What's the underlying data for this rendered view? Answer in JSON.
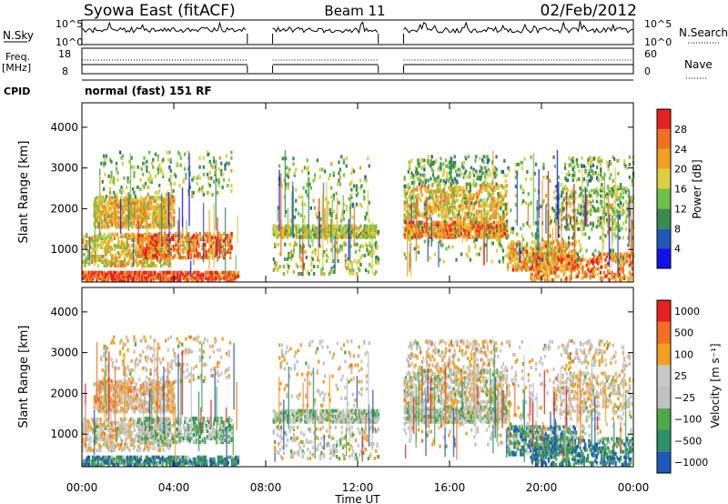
{
  "header": {
    "station": "Syowa East (fitACF)",
    "beam": "Beam 11",
    "date": "02/Feb/2012"
  },
  "summary": {
    "nsky_label": "N.Sky",
    "nsky_ticks": [
      "10^5",
      "10^0"
    ],
    "nsearch_label": "N.Search",
    "nsearch_ticks": [
      "10^5",
      "10^0"
    ],
    "freq_label_1": "Freq.",
    "freq_label_2": "[MHz]",
    "freq_ticks": [
      "18",
      "8"
    ],
    "nave_label": "Nave",
    "nave_ticks": [
      "60",
      "0"
    ],
    "cpid_label": "CPID",
    "cpid_value": "normal (fast) 151 RF"
  },
  "colors": {
    "power": [
      "#1010e8",
      "#1f58b8",
      "#3a8a4f",
      "#6fbf4a",
      "#d8d040",
      "#f2a020",
      "#f07020",
      "#e62020"
    ],
    "velocity": [
      "#e62020",
      "#f07020",
      "#f2a020",
      "#c8c8c8",
      "#c0c0c0",
      "#4fa84a",
      "#2f8f68",
      "#1f58b8"
    ]
  },
  "chart_data": [
    {
      "type": "heatmap",
      "title": "",
      "xlabel": "",
      "ylabel": "Slant Range [km]",
      "x_ticks": [
        "00:00",
        "04:00",
        "08:00",
        "12:00",
        "16:00",
        "20:00",
        "00:00"
      ],
      "y_ticks": [
        "1000",
        "2000",
        "3000",
        "4000"
      ],
      "ylim": [
        200,
        4600
      ],
      "colorbar_label": "Power [dB]",
      "colorbar_ticks": [
        "4",
        "8",
        "12",
        "16",
        "20",
        "24",
        "28"
      ],
      "data_gaps_utc_hours": [
        [
          7.2,
          8.3
        ],
        [
          12.9,
          14.0
        ]
      ]
    },
    {
      "type": "heatmap",
      "title": "",
      "xlabel": "Time UT",
      "ylabel": "Slant Range [km]",
      "x_ticks": [
        "00:00",
        "04:00",
        "08:00",
        "12:00",
        "16:00",
        "20:00",
        "00:00"
      ],
      "y_ticks": [
        "1000",
        "2000",
        "3000",
        "4000"
      ],
      "ylim": [
        200,
        4600
      ],
      "colorbar_label": "Velocity [m s⁻¹]",
      "colorbar_ticks": [
        "1000",
        "500",
        "100",
        "25",
        "−25",
        "−100",
        "−500",
        "−1000"
      ],
      "data_gaps_utc_hours": [
        [
          7.2,
          8.3
        ],
        [
          12.9,
          14.0
        ]
      ]
    }
  ]
}
